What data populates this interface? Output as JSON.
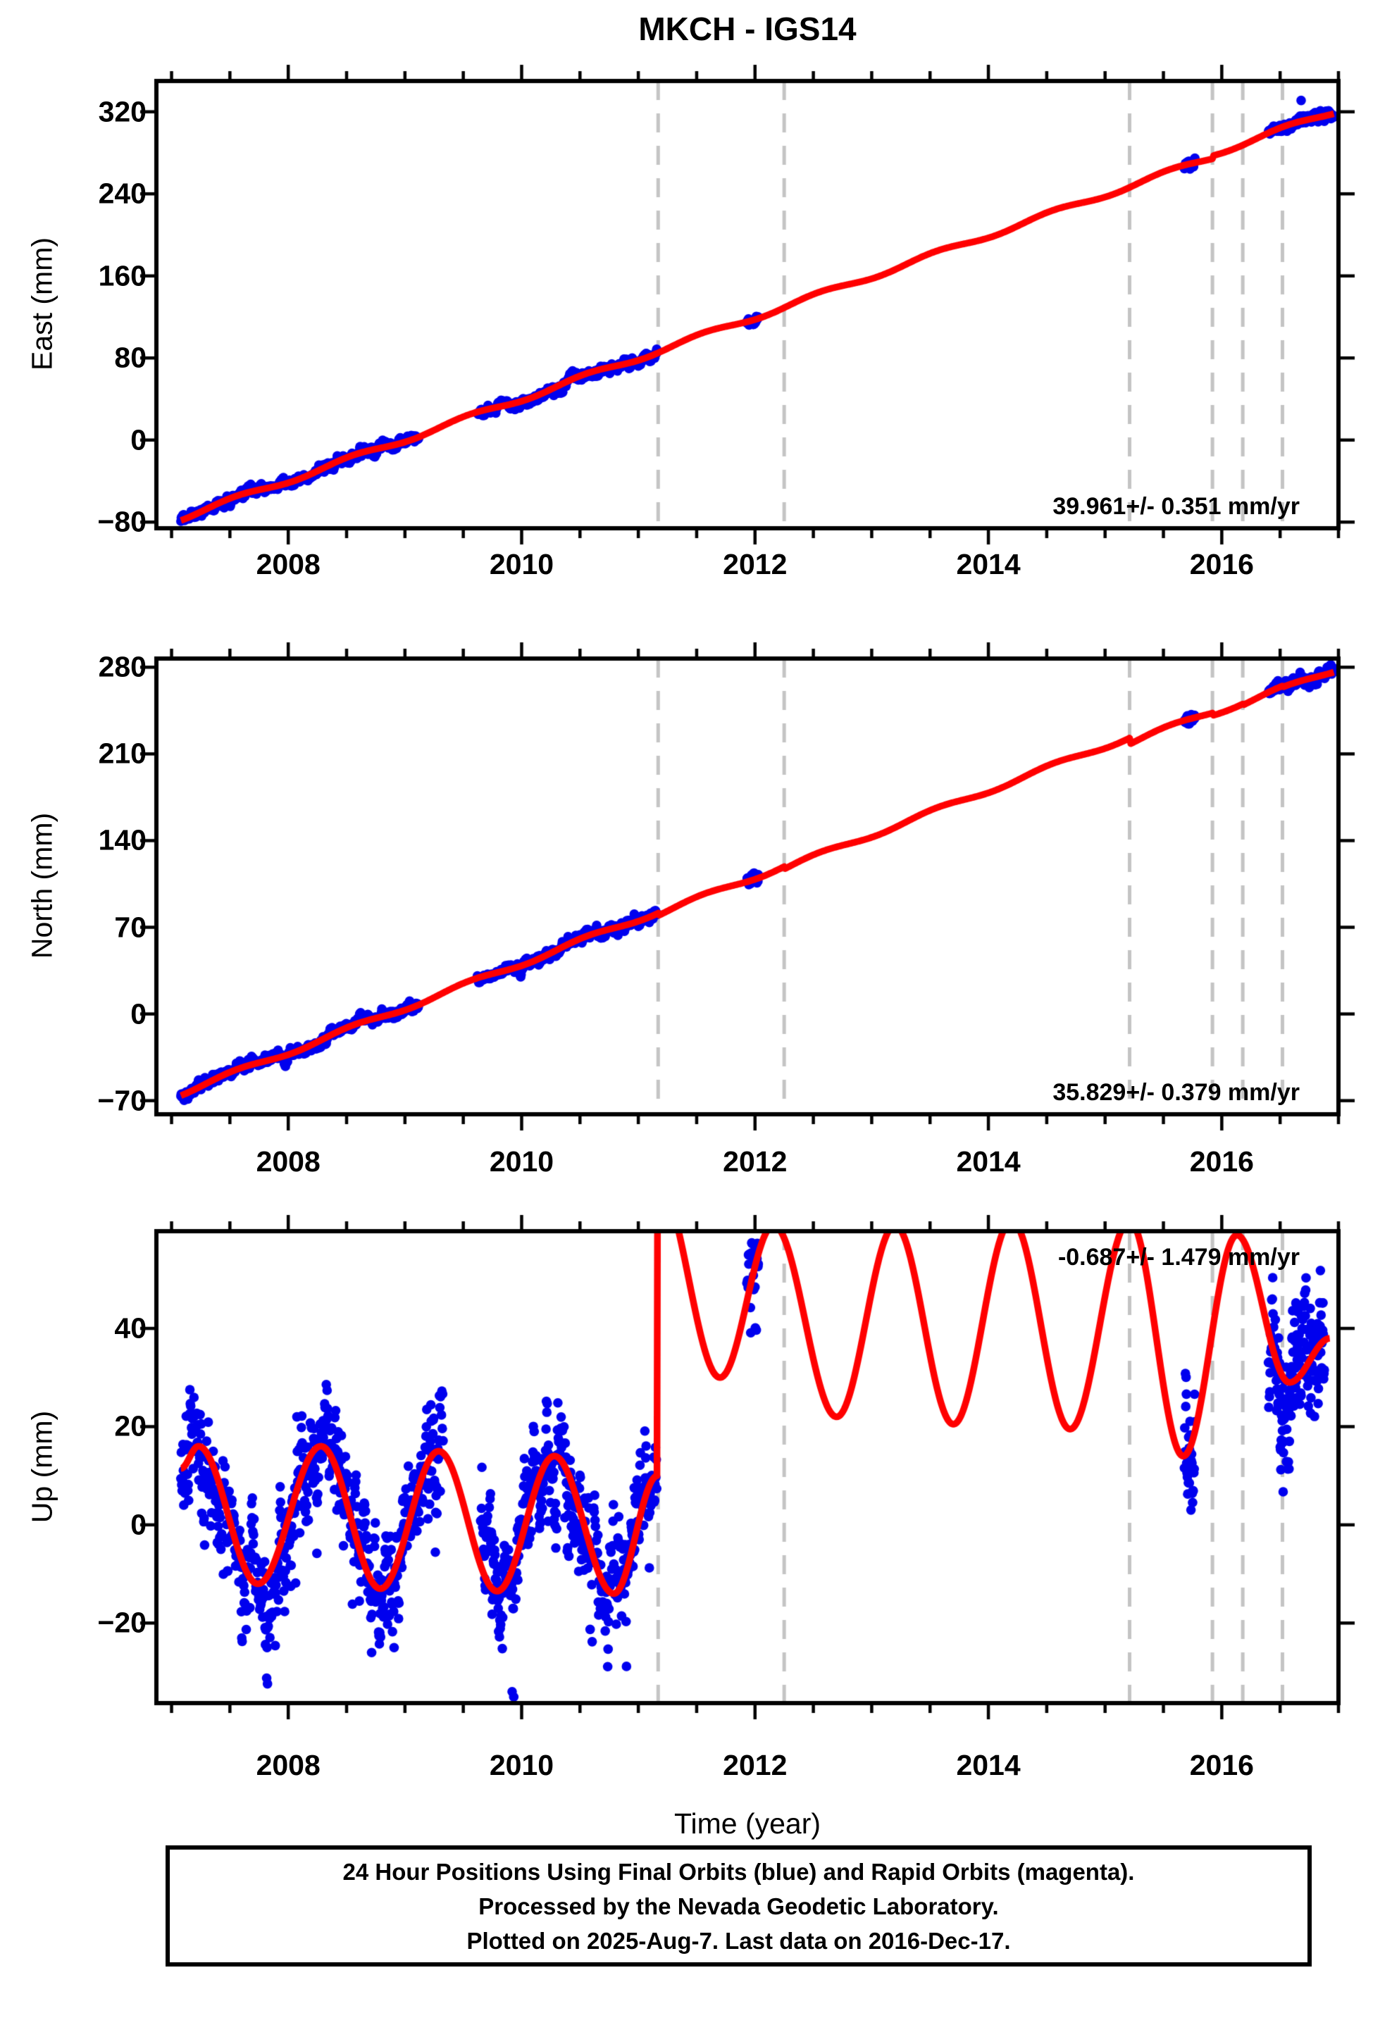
{
  "title": "MKCH - IGS14",
  "caption": {
    "line1": "24 Hour Positions Using Final Orbits (blue) and Rapid Orbits (magenta).",
    "line2": "Processed by the Nevada Geodetic Laboratory.",
    "line3": "Plotted on 2025-Aug-7. Last data on 2016-Dec-17."
  },
  "chart_data": {
    "type": "scatter",
    "station": "MKCH",
    "reference_frame": "IGS14",
    "xlabel": "Time (year)",
    "x_range": [
      2006.87,
      2017.0
    ],
    "x_ticks": [
      2008,
      2010,
      2012,
      2014,
      2016
    ],
    "x_minor_step": 0.5,
    "event_lines_years": [
      2011.17,
      2012.25,
      2015.21,
      2015.92,
      2016.18,
      2016.52
    ],
    "colors": {
      "final_orbits": "#0000ee",
      "rapid_orbits": "#ff00ff",
      "model_line": "#ff0000",
      "event_line": "#c4c4c4",
      "frame": "#000000"
    },
    "data_segments": [
      [
        2007.08,
        2011.16
      ],
      [
        2011.93,
        2012.03
      ],
      [
        2015.68,
        2015.77
      ],
      [
        2016.4,
        2016.96
      ]
    ],
    "gaps": {
      "horizontal": [
        2009.12,
        2009.62
      ],
      "up": [
        2009.33,
        2009.64
      ]
    },
    "panels": [
      {
        "id": "east",
        "ylabel": "East (mm)",
        "rate_label": "39.961+/- 0.351 mm/yr",
        "rate_corner": "br",
        "y_range": [
          -86,
          350
        ],
        "y_ticks": [
          -80,
          0,
          80,
          160,
          240,
          320
        ],
        "noise_sigma": 2.5,
        "model": {
          "kind": "trend",
          "t0": 2007.08,
          "v0": -76,
          "rate": 39.8,
          "steps": [
            [
              2015.92,
              3
            ]
          ],
          "seasonal_amp": 2.5
        },
        "outliers": [
          [
            2016.68,
            331
          ]
        ]
      },
      {
        "id": "north",
        "ylabel": "North (mm)",
        "rate_label": "35.829+/- 0.379 mm/yr",
        "rate_corner": "br",
        "y_range": [
          -81,
          287
        ],
        "y_ticks": [
          -70,
          0,
          70,
          140,
          210,
          280
        ],
        "noise_sigma": 2.3,
        "model": {
          "kind": "trend",
          "t0": 2007.08,
          "v0": -64,
          "rate": 35.9,
          "steps": [
            [
              2011.17,
              -2
            ],
            [
              2012.25,
              -2
            ],
            [
              2015.21,
              -5
            ],
            [
              2015.92,
              -2
            ],
            [
              2016.18,
              -1
            ],
            [
              2016.52,
              -1
            ]
          ],
          "seasonal_amp": 2.0
        },
        "outliers": []
      },
      {
        "id": "up",
        "ylabel": "Up (mm)",
        "rate_label": "-0.687+/- 1.479 mm/yr",
        "rate_corner": "tr",
        "y_range": [
          -36.3,
          59.8
        ],
        "y_ticks": [
          -20,
          0,
          20,
          40
        ],
        "noise_sigma": 6.5,
        "model": {
          "kind": "seasonal_step",
          "extrema_pre": [
            [
              2007.08,
              11.5
            ],
            [
              2007.23,
              16
            ],
            [
              2007.74,
              -12
            ],
            [
              2008.28,
              16
            ],
            [
              2008.79,
              -13
            ],
            [
              2009.29,
              15
            ],
            [
              2009.79,
              -13.5
            ],
            [
              2010.28,
              14
            ],
            [
              2010.79,
              -14
            ],
            [
              2011.165,
              10
            ]
          ],
          "step_t": 2011.165,
          "step_top": 70,
          "extrema_post": [
            [
              2011.165,
              70
            ],
            [
              2011.7,
              30
            ],
            [
              2012.16,
              61
            ],
            [
              2012.7,
              22
            ],
            [
              2013.2,
              61
            ],
            [
              2013.7,
              20.5
            ],
            [
              2014.2,
              62
            ],
            [
              2014.7,
              19.5
            ],
            [
              2015.21,
              62
            ],
            [
              2015.67,
              14
            ],
            [
              2016.13,
              59
            ],
            [
              2016.58,
              29
            ],
            [
              2016.93,
              38
            ]
          ]
        },
        "outliers": []
      }
    ]
  }
}
